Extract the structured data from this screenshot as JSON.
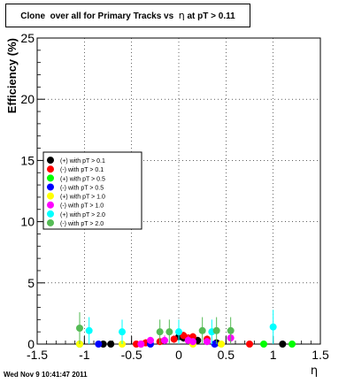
{
  "title": {
    "pre": "Clone  over all for Primary Tracks vs  ",
    "sym": "η",
    "post": " at pT > 0.11"
  },
  "footer": "Wed Nov  9 10:41:47 2011",
  "chart_data": {
    "type": "scatter",
    "xlabel": "η",
    "ylabel": "Efficiency (%)",
    "xlim": [
      -1.5,
      1.5
    ],
    "ylim": [
      0,
      25
    ],
    "xticks": [
      "-1.5",
      "-1",
      "-0.5",
      "0",
      "0.5",
      "1",
      "1.5"
    ],
    "yticks": [
      "0",
      "5",
      "10",
      "15",
      "20",
      "25"
    ],
    "grid": true,
    "legend_position": "left",
    "series": [
      {
        "name": "(+) with pT > 0.1",
        "color": "#000000",
        "points": [
          [
            -0.8,
            0
          ],
          [
            -0.72,
            0
          ],
          [
            0,
            0.6
          ],
          [
            0.05,
            0.5
          ],
          [
            0.2,
            0.3
          ],
          [
            0.4,
            0.1
          ],
          [
            1.1,
            0
          ]
        ],
        "errors": [
          0,
          0,
          0.3,
          0.3,
          0.3,
          0.3,
          0
        ]
      },
      {
        "name": "(-) with pT > 0.1",
        "color": "#ff0000",
        "points": [
          [
            -0.45,
            0
          ],
          [
            -0.4,
            0
          ],
          [
            -0.35,
            0.1
          ],
          [
            -0.2,
            0.2
          ],
          [
            -0.05,
            0.4
          ],
          [
            0.05,
            0.7
          ],
          [
            0.1,
            0.5
          ],
          [
            0.15,
            0.6
          ],
          [
            0.3,
            0.4
          ],
          [
            0.75,
            0
          ]
        ],
        "errors": [
          0,
          0,
          0.3,
          0.3,
          0.3,
          0.3,
          0.3,
          0.3,
          0.3,
          0
        ]
      },
      {
        "name": "(+) with pT > 0.5",
        "color": "#00ff00",
        "points": [
          [
            -1.05,
            0
          ],
          [
            0.9,
            0
          ],
          [
            1.2,
            0
          ]
        ],
        "errors": [
          0,
          0,
          0
        ]
      },
      {
        "name": "(-) with pT > 0.5",
        "color": "#0000ff",
        "points": [
          [
            -0.85,
            0
          ],
          [
            -0.3,
            0
          ],
          [
            0.38,
            0
          ]
        ],
        "errors": [
          0,
          0,
          0
        ]
      },
      {
        "name": "(+) with pT > 1.0",
        "color": "#ffff00",
        "points": [
          [
            -1.05,
            0
          ],
          [
            -0.6,
            0
          ],
          [
            0.15,
            0
          ],
          [
            0.45,
            0
          ]
        ],
        "errors": [
          0,
          0,
          0,
          0
        ]
      },
      {
        "name": "(-) with pT > 1.0",
        "color": "#ff00ff",
        "points": [
          [
            -0.4,
            0
          ],
          [
            -0.3,
            0.3
          ],
          [
            -0.15,
            0.3
          ],
          [
            0.1,
            0.3
          ],
          [
            0.15,
            0.2
          ],
          [
            0.3,
            0.2
          ],
          [
            0.55,
            0.5
          ]
        ],
        "errors": [
          0,
          0.3,
          0.4,
          0.4,
          0.3,
          0.3,
          0.4
        ]
      },
      {
        "name": "(+) with pT > 2.0",
        "color": "#00ffff",
        "points": [
          [
            -0.95,
            1.1
          ],
          [
            -0.6,
            1.0
          ],
          [
            0.0,
            1.0
          ],
          [
            0.35,
            1.0
          ],
          [
            1.0,
            1.4
          ]
        ],
        "errors": [
          1.1,
          1.0,
          1.0,
          1.0,
          1.4
        ]
      },
      {
        "name": "(-) with pT > 2.0",
        "color": "#55bb55",
        "points": [
          [
            -1.05,
            1.3
          ],
          [
            -0.2,
            1.0
          ],
          [
            -0.1,
            1.0
          ],
          [
            0.25,
            1.1
          ],
          [
            0.4,
            1.1
          ],
          [
            0.55,
            1.1
          ]
        ],
        "errors": [
          1.3,
          1.0,
          1.0,
          1.1,
          1.1,
          1.1
        ]
      }
    ]
  }
}
